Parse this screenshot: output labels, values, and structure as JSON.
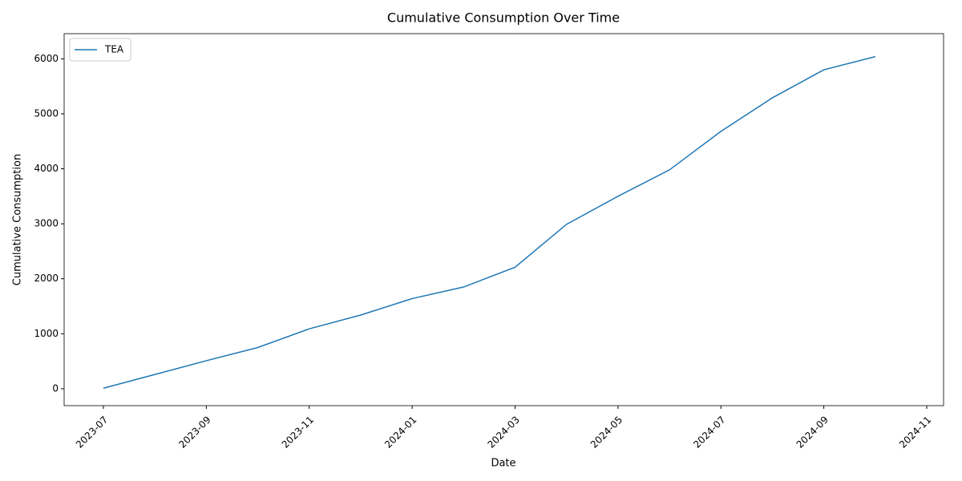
{
  "chart_data": {
    "type": "line",
    "title": "Cumulative Consumption Over Time",
    "x_label": "Date",
    "y_label": "Cumulative Consumption",
    "x": [
      "2023-07",
      "2023-08",
      "2023-09",
      "2023-10",
      "2023-11",
      "2023-12",
      "2024-01",
      "2024-02",
      "2024-03",
      "2024-04",
      "2024-05",
      "2024-06",
      "2024-07",
      "2024-08",
      "2024-09",
      "2024-10"
    ],
    "series": [
      {
        "name": "TEA",
        "color": "#1f77b4",
        "values": [
          10,
          260,
          510,
          750,
          1090,
          1340,
          1640,
          1850,
          2210,
          2990,
          3500,
          3980,
          4680,
          5290,
          5800,
          6040
        ]
      }
    ],
    "xticks": [
      "2023-07",
      "2023-09",
      "2023-11",
      "2024-01",
      "2024-03",
      "2024-05",
      "2024-07",
      "2024-09",
      "2024-11"
    ],
    "ylim": [
      -307,
      6457
    ],
    "yticks": [
      0,
      1000,
      2000,
      3000,
      4000,
      5000,
      6000
    ],
    "legend": "upper-left"
  }
}
